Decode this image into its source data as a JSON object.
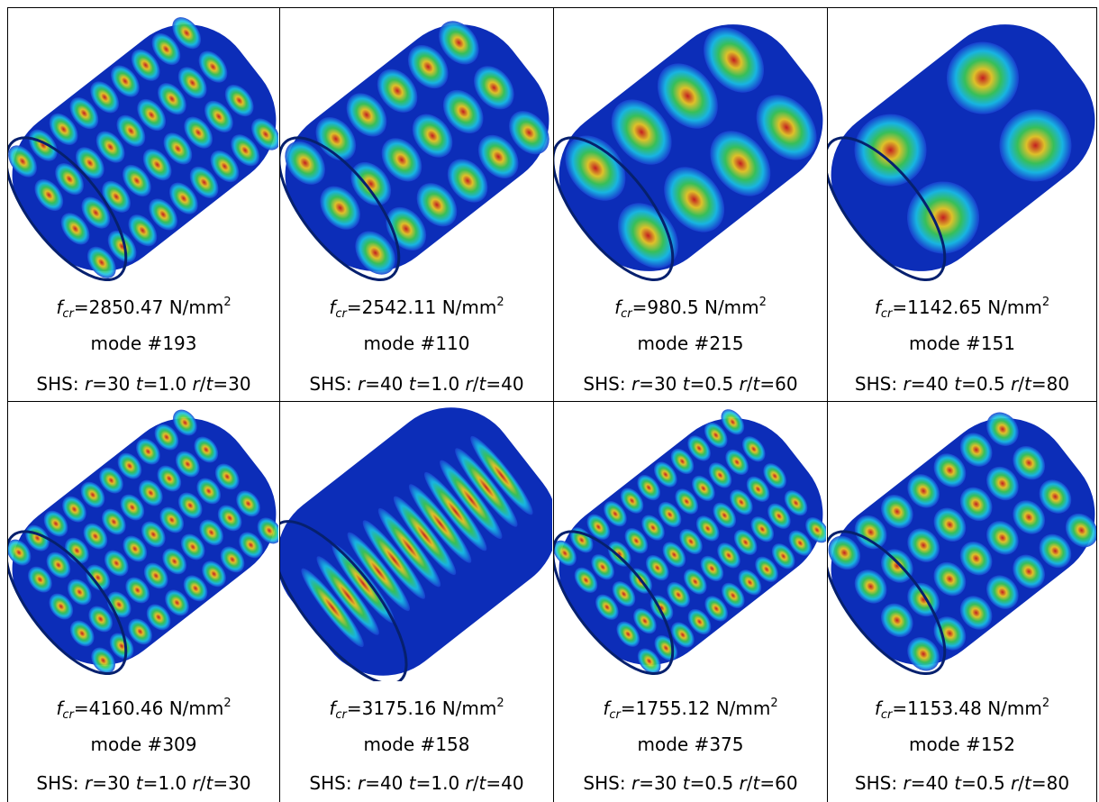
{
  "figure": {
    "cells": [
      {
        "fcr": {
          "symbol": "f",
          "subscript": "cr",
          "text": "=2850.47 N/mm",
          "exponent": "2"
        },
        "mode": "mode #193",
        "shs": [
          {
            "text": "SHS: "
          },
          {
            "text": "r",
            "italic": true
          },
          {
            "text": "=30 "
          },
          {
            "text": "t",
            "italic": true
          },
          {
            "text": "=1.0 "
          },
          {
            "text": "r",
            "italic": true
          },
          {
            "text": "/"
          },
          {
            "text": "t",
            "italic": true
          },
          {
            "text": "=30"
          }
        ]
      },
      {
        "fcr": {
          "symbol": "f",
          "subscript": "cr",
          "text": "=2542.11 N/mm",
          "exponent": "2"
        },
        "mode": "mode #110",
        "shs": [
          {
            "text": "SHS: "
          },
          {
            "text": "r",
            "italic": true
          },
          {
            "text": "=40 "
          },
          {
            "text": "t",
            "italic": true
          },
          {
            "text": "=1.0 "
          },
          {
            "text": "r",
            "italic": true
          },
          {
            "text": "/"
          },
          {
            "text": "t",
            "italic": true
          },
          {
            "text": "=40"
          }
        ]
      },
      {
        "fcr": {
          "symbol": "f",
          "subscript": "cr",
          "text": "=980.5 N/mm",
          "exponent": "2"
        },
        "mode": "mode #215",
        "shs": [
          {
            "text": "SHS: "
          },
          {
            "text": "r",
            "italic": true
          },
          {
            "text": "=30 "
          },
          {
            "text": "t",
            "italic": true
          },
          {
            "text": "=0.5 "
          },
          {
            "text": "r",
            "italic": true
          },
          {
            "text": "/"
          },
          {
            "text": "t",
            "italic": true
          },
          {
            "text": "=60"
          }
        ]
      },
      {
        "fcr": {
          "symbol": "f",
          "subscript": "cr",
          "text": "=1142.65 N/mm",
          "exponent": "2"
        },
        "mode": "mode #151",
        "shs": [
          {
            "text": "SHS: "
          },
          {
            "text": "r",
            "italic": true
          },
          {
            "text": "=40 "
          },
          {
            "text": "t",
            "italic": true
          },
          {
            "text": "=0.5 "
          },
          {
            "text": "r",
            "italic": true
          },
          {
            "text": "/"
          },
          {
            "text": "t",
            "italic": true
          },
          {
            "text": "=80"
          }
        ]
      },
      {
        "fcr": {
          "symbol": "f",
          "subscript": "cr",
          "text": "=4160.46 N/mm",
          "exponent": "2"
        },
        "mode": "mode #309",
        "shs": [
          {
            "text": "SHS: "
          },
          {
            "text": "r",
            "italic": true
          },
          {
            "text": "=30 "
          },
          {
            "text": "t",
            "italic": true
          },
          {
            "text": "=1.0 "
          },
          {
            "text": "r",
            "italic": true
          },
          {
            "text": "/"
          },
          {
            "text": "t",
            "italic": true
          },
          {
            "text": "=30"
          }
        ]
      },
      {
        "fcr": {
          "symbol": "f",
          "subscript": "cr",
          "text": "=3175.16 N/mm",
          "exponent": "2"
        },
        "mode": "mode #158",
        "shs": [
          {
            "text": "SHS: "
          },
          {
            "text": "r",
            "italic": true
          },
          {
            "text": "=40 "
          },
          {
            "text": "t",
            "italic": true
          },
          {
            "text": "=1.0 "
          },
          {
            "text": "r",
            "italic": true
          },
          {
            "text": "/"
          },
          {
            "text": "t",
            "italic": true
          },
          {
            "text": "=40"
          }
        ]
      },
      {
        "fcr": {
          "symbol": "f",
          "subscript": "cr",
          "text": "=1755.12 N/mm",
          "exponent": "2"
        },
        "mode": "mode #375",
        "shs": [
          {
            "text": "SHS: "
          },
          {
            "text": "r",
            "italic": true
          },
          {
            "text": "=30 "
          },
          {
            "text": "t",
            "italic": true
          },
          {
            "text": "=0.5 "
          },
          {
            "text": "r",
            "italic": true
          },
          {
            "text": "/"
          },
          {
            "text": "t",
            "italic": true
          },
          {
            "text": "=60"
          }
        ]
      },
      {
        "fcr": {
          "symbol": "f",
          "subscript": "cr",
          "text": "=1153.48 N/mm",
          "exponent": "2"
        },
        "mode": "mode #152",
        "shs": [
          {
            "text": "SHS: "
          },
          {
            "text": "r",
            "italic": true
          },
          {
            "text": "=40 "
          },
          {
            "text": "t",
            "italic": true
          },
          {
            "text": "=0.5 "
          },
          {
            "text": "r",
            "italic": true
          },
          {
            "text": "/"
          },
          {
            "text": "t",
            "italic": true
          },
          {
            "text": "=80"
          }
        ]
      }
    ]
  }
}
